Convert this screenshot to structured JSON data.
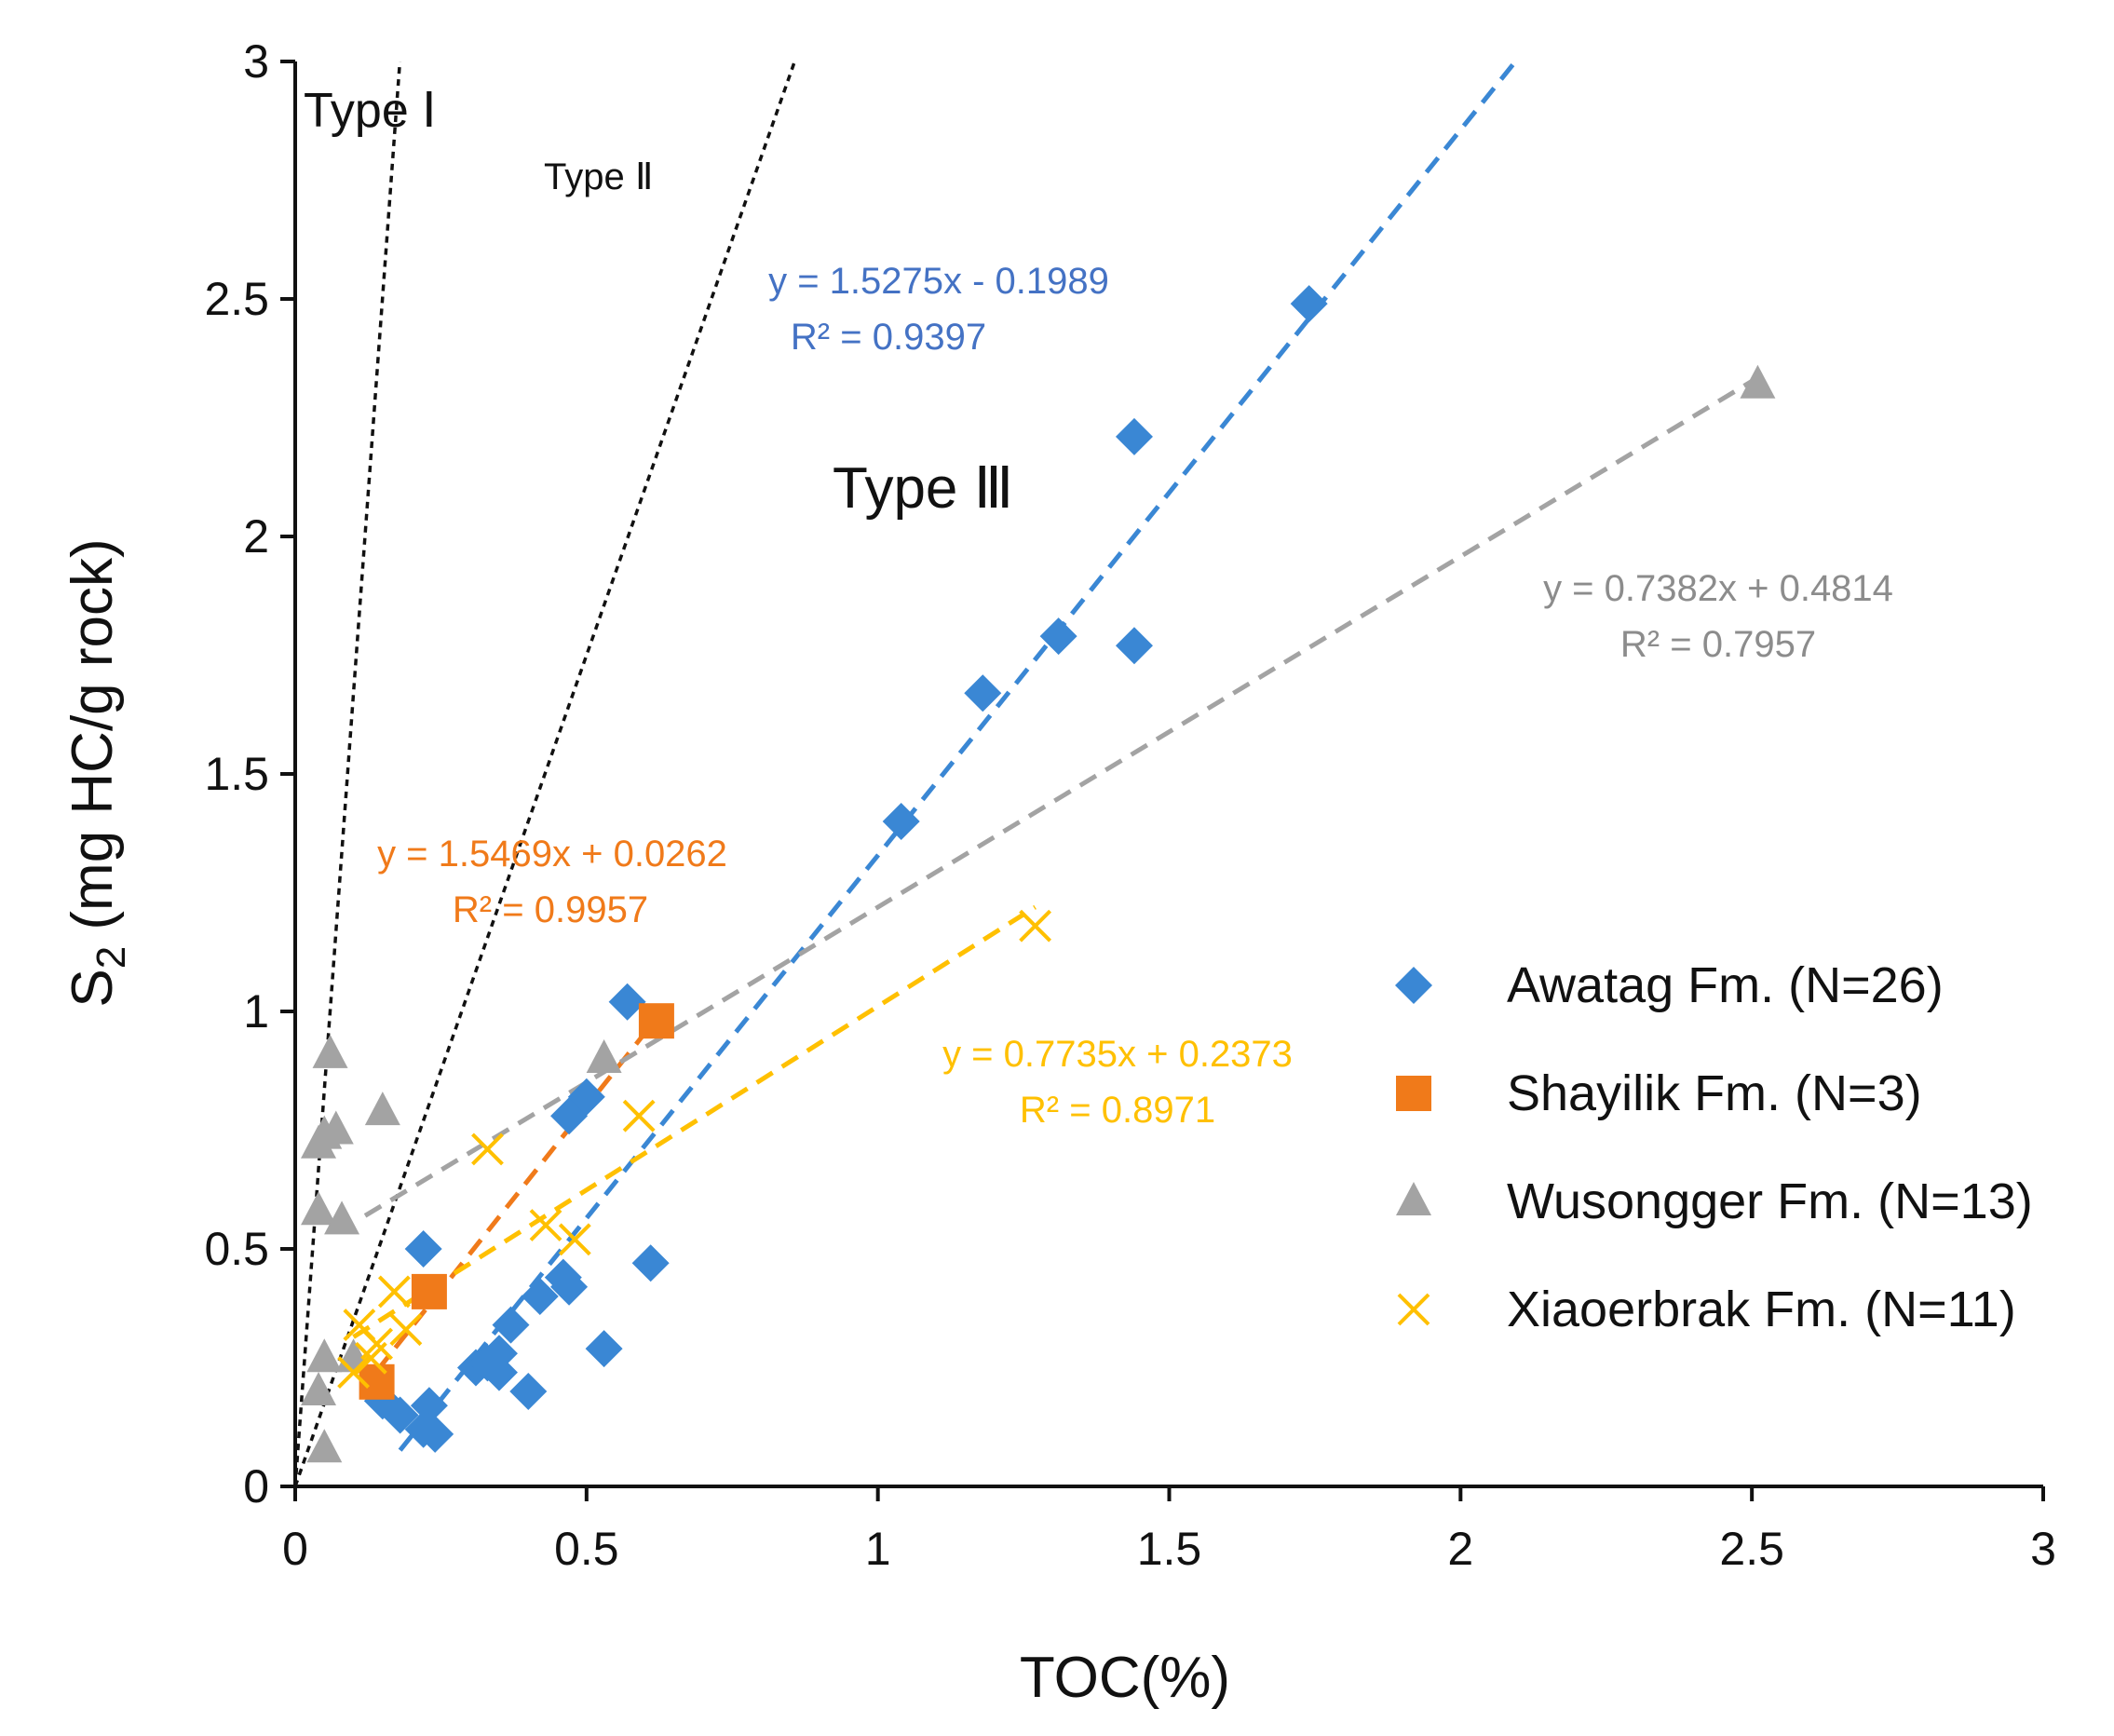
{
  "chart_data": {
    "type": "scatter",
    "xlabel": "TOC(%)",
    "ylabel_main": "S",
    "ylabel_sub": "2",
    "ylabel_rest": " (mg HC/g rock)",
    "xlim": [
      0,
      3
    ],
    "ylim": [
      0,
      3
    ],
    "xticks": [
      0,
      0.5,
      1,
      1.5,
      2,
      2.5,
      3
    ],
    "yticks": [
      0,
      0.5,
      1,
      1.5,
      2,
      2.5,
      3
    ],
    "xtick_labels": [
      "0",
      "0.5",
      "1",
      "1.5",
      "2",
      "2.5",
      "3"
    ],
    "ytick_labels": [
      "0",
      "0.5",
      "1",
      "1.5",
      "2",
      "2.5",
      "3"
    ],
    "kerogen_lines": [
      {
        "name": "Type I boundary",
        "slope": 16.7
      },
      {
        "name": "Type II boundary",
        "slope": 3.5
      }
    ],
    "type_labels": {
      "type1": "Type Ⅰ",
      "type2": "Type Ⅱ",
      "type3": "Type Ⅲ"
    },
    "series": [
      {
        "name": "Awatag Fm. (N=26)",
        "marker": "diamond",
        "color": "#3a87d4",
        "points": [
          [
            0.18,
            0.15
          ],
          [
            0.22,
            0.12
          ],
          [
            0.23,
            0.17
          ],
          [
            0.24,
            0.11
          ],
          [
            0.22,
            0.5
          ],
          [
            0.31,
            0.25
          ],
          [
            0.33,
            0.26
          ],
          [
            0.35,
            0.24
          ],
          [
            0.35,
            0.28
          ],
          [
            0.37,
            0.34
          ],
          [
            0.4,
            0.2
          ],
          [
            0.42,
            0.4
          ],
          [
            0.46,
            0.44
          ],
          [
            0.47,
            0.42
          ],
          [
            0.47,
            0.78
          ],
          [
            0.5,
            0.82
          ],
          [
            0.53,
            0.29
          ],
          [
            0.57,
            1.02
          ],
          [
            0.61,
            0.47
          ],
          [
            1.04,
            1.4
          ],
          [
            1.18,
            1.67
          ],
          [
            1.31,
            1.79
          ],
          [
            1.44,
            2.21
          ],
          [
            1.44,
            1.77
          ],
          [
            1.74,
            2.49
          ],
          [
            0.15,
            0.18
          ]
        ],
        "fit": {
          "slope": 1.5275,
          "intercept": -0.1989,
          "x_range": [
            0.18,
            2.1
          ],
          "equation": "y = 1.5275x - 0.1989",
          "r2": "R² = 0.9397"
        }
      },
      {
        "name": "Shayilik Fm. (N=3)",
        "marker": "square",
        "color": "#f07a1a",
        "points": [
          [
            0.14,
            0.22
          ],
          [
            0.23,
            0.41
          ],
          [
            0.62,
            0.98
          ]
        ],
        "fit": {
          "slope": 1.5469,
          "intercept": 0.0262,
          "x_range": [
            0.14,
            0.62
          ],
          "equation": "y = 1.5469x + 0.0262",
          "r2": "R² = 0.9957"
        }
      },
      {
        "name": "Wusongger Fm. (N=13)",
        "marker": "triangle",
        "color": "#a3a3a3",
        "points": [
          [
            0.05,
            0.08
          ],
          [
            0.04,
            0.2
          ],
          [
            0.05,
            0.27
          ],
          [
            0.04,
            0.58
          ],
          [
            0.04,
            0.72
          ],
          [
            0.05,
            0.74
          ],
          [
            0.07,
            0.75
          ],
          [
            0.06,
            0.91
          ],
          [
            0.08,
            0.56
          ],
          [
            0.15,
            0.79
          ],
          [
            0.53,
            0.9
          ],
          [
            2.51,
            2.32
          ],
          [
            0.1,
            0.27
          ]
        ],
        "fit": {
          "slope": 0.7382,
          "intercept": 0.4814,
          "x_range": [
            0.12,
            2.5
          ],
          "equation": "y = 0.7382x + 0.4814",
          "r2": "R² = 0.7957"
        }
      },
      {
        "name": "Xiaoerbrak Fm. (N=11)",
        "marker": "cross",
        "color": "#ffc000",
        "points": [
          [
            0.1,
            0.24
          ],
          [
            0.11,
            0.34
          ],
          [
            0.13,
            0.27
          ],
          [
            0.14,
            0.3
          ],
          [
            0.17,
            0.41
          ],
          [
            0.19,
            0.33
          ],
          [
            0.33,
            0.71
          ],
          [
            0.43,
            0.55
          ],
          [
            0.48,
            0.52
          ],
          [
            0.59,
            0.78
          ],
          [
            1.27,
            1.18
          ]
        ],
        "fit": {
          "slope": 0.7735,
          "intercept": 0.2373,
          "x_range": [
            0.1,
            1.27
          ],
          "equation": "y = 0.7735x + 0.2373",
          "r2": "R² = 0.8971"
        }
      }
    ]
  }
}
